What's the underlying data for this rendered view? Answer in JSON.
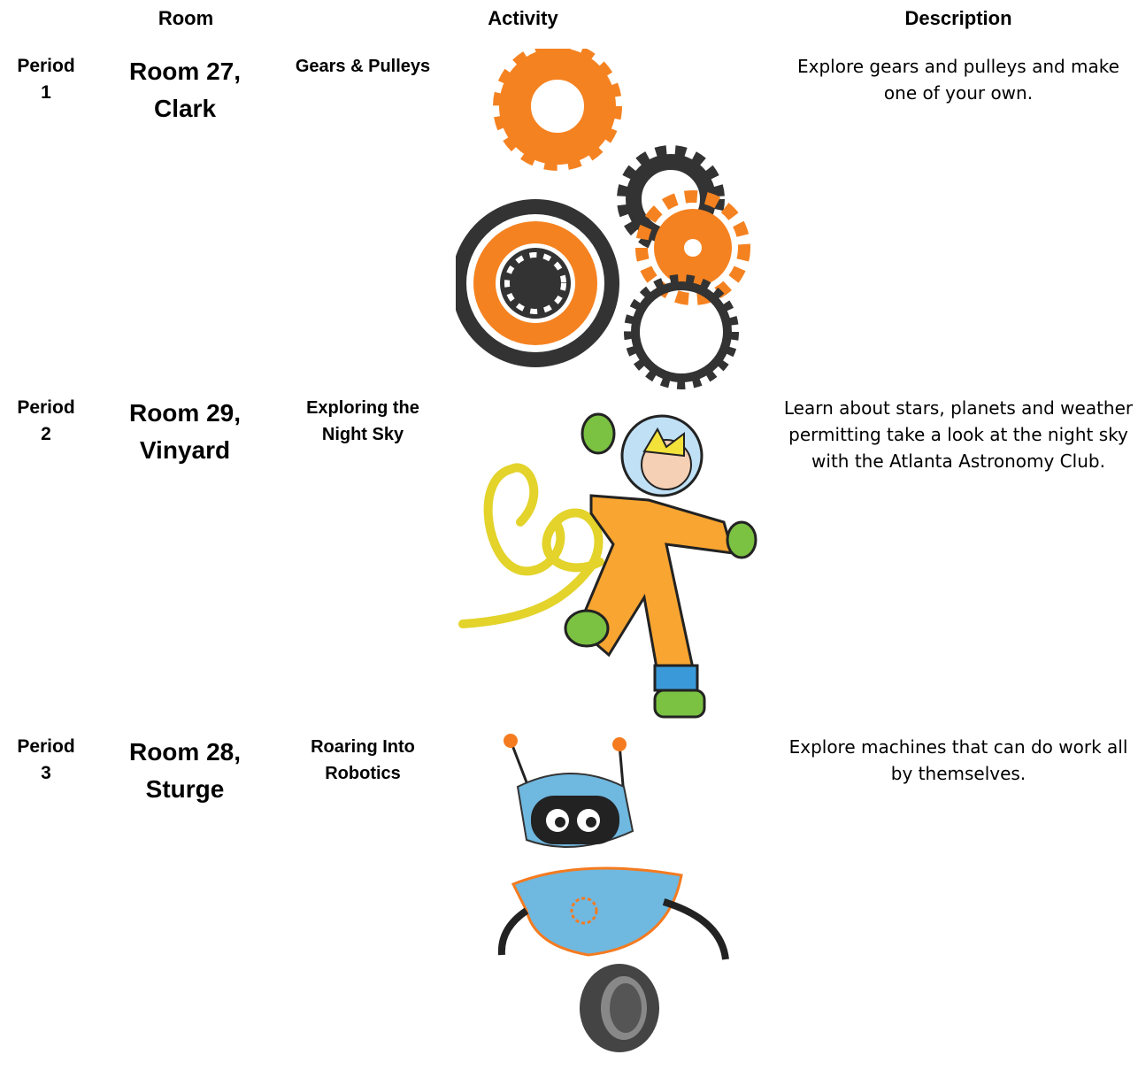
{
  "header": {
    "room": "Room",
    "activity": "Activity",
    "description": "Description"
  },
  "rows": [
    {
      "period": "Period 1",
      "room": "Room 27, Clark",
      "activity": "Gears & Pulleys",
      "description": "Explore gears and pulleys and make one of your own."
    },
    {
      "period": "Period 2",
      "room": "Room 29, Vinyard",
      "activity": "Exploring the Night Sky",
      "description": "Learn about stars, planets and weather permitting take a look at the night sky with the Atlanta Astronomy Club."
    },
    {
      "period": "Period 3",
      "room": "Room 28, Sturge",
      "activity": "Roaring Into Robotics",
      "description": "Explore machines that can do work all by themselves."
    }
  ]
}
